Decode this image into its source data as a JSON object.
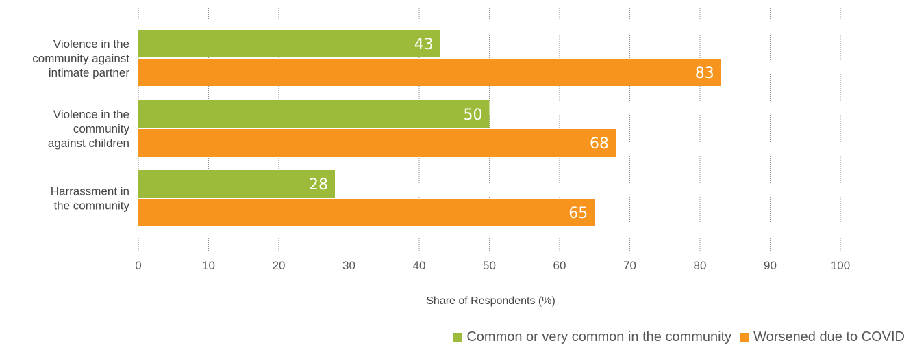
{
  "chart_data": {
    "type": "bar",
    "orientation": "horizontal",
    "categories": [
      [
        "Violence in the",
        "community against",
        "intimate partner"
      ],
      [
        "Violence in the",
        "community",
        "against children"
      ],
      [
        "Harrassment in",
        "the community"
      ]
    ],
    "series": [
      {
        "name": "Common or very common in the community",
        "color": "#9dbb3a",
        "values": [
          43,
          50,
          28
        ]
      },
      {
        "name": "Worsened due to COVID",
        "color": "#f7941d",
        "values": [
          83,
          68,
          65
        ]
      }
    ],
    "xlabel": "Share of Respondents (%)",
    "ylabel": "",
    "xlim": [
      0,
      100
    ],
    "xticks": [
      "0",
      "10",
      "20",
      "30",
      "40",
      "50",
      "60",
      "70",
      "80",
      "90",
      "100"
    ],
    "grid": "vertical dotted",
    "legend_position": "bottom-right"
  }
}
